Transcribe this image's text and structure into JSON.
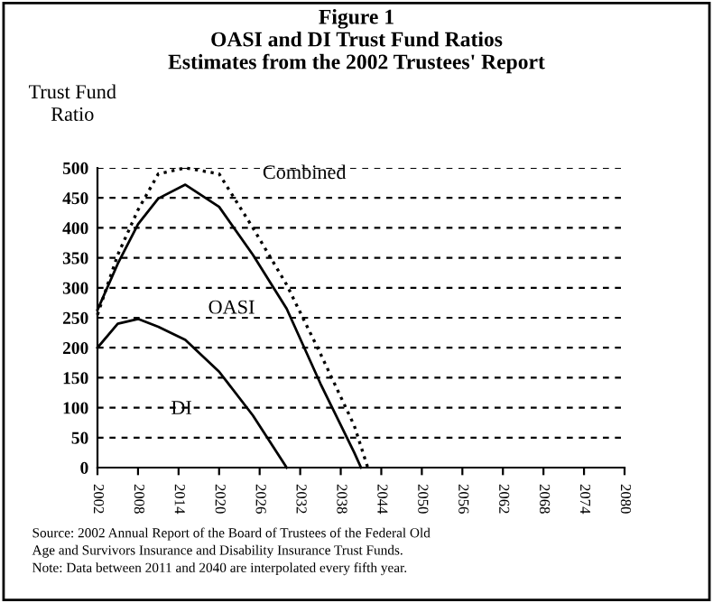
{
  "chart_data": {
    "type": "line",
    "title": "Figure 1\nOASI and DI Trust Fund Ratios\nEstimates from the 2002 Trustees' Report",
    "ylabel": "Trust Fund\nRatio",
    "series": [
      {
        "name": "OASI",
        "color": "#000000",
        "line_style": "solid",
        "x": [
          2002,
          2005,
          2008,
          2011,
          2015,
          2020,
          2025,
          2030,
          2035,
          2040,
          2041
        ],
        "values": [
          263,
          340,
          406,
          449,
          472,
          435,
          355,
          265,
          140,
          25,
          0
        ]
      },
      {
        "name": "Combined",
        "color": "#000000",
        "line_style": "dotted",
        "x": [
          2002,
          2005,
          2008,
          2011,
          2015,
          2020,
          2025,
          2030,
          2035,
          2040,
          2042
        ],
        "values": [
          255,
          355,
          430,
          490,
          500,
          490,
          400,
          305,
          190,
          70,
          0
        ]
      },
      {
        "name": "DI",
        "color": "#000000",
        "line_style": "solid",
        "x": [
          2002,
          2005,
          2008,
          2011,
          2015,
          2020,
          2025,
          2030
        ],
        "values": [
          200,
          240,
          248,
          235,
          213,
          160,
          87,
          0
        ]
      }
    ],
    "annotations": [
      "Source: 2002 Annual Report of the Board of Trustees of the Federal Old\nAge and Survivors Insurance and Disability Insurance Trust Funds.\nNote: Data between 2011 and 2040 are interpolated every fifth year."
    ],
    "xlim": [
      2002,
      2080
    ],
    "xticks": [
      2002,
      2008,
      2014,
      2020,
      2026,
      2032,
      2038,
      2044,
      2050,
      2056,
      2062,
      2068,
      2074,
      2080
    ],
    "ylim": [
      0,
      500
    ],
    "yticks": [
      0,
      50,
      100,
      150,
      200,
      250,
      300,
      350,
      400,
      450,
      500
    ],
    "grid": "y",
    "marker": "none",
    "legend": false
  }
}
